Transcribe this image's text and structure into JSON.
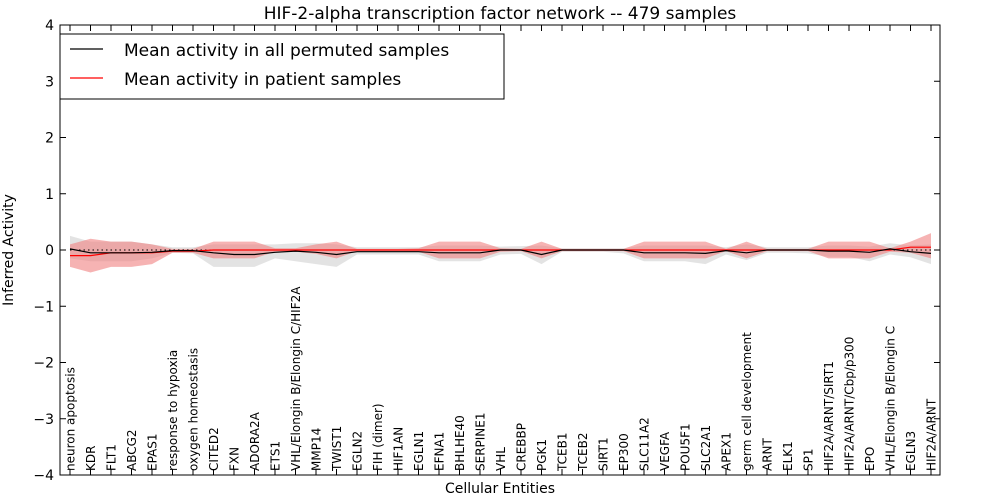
{
  "chart_data": {
    "type": "line",
    "title": "HIF-2-alpha transcription factor network -- 479 samples",
    "xlabel": "Cellular Entities",
    "ylabel": "Inferred Activity",
    "ylim": [
      -4,
      4
    ],
    "yticks": [
      4,
      3,
      2,
      1,
      0,
      -1,
      -2,
      -3,
      -4
    ],
    "ytick_labels": [
      "4",
      "3",
      "2",
      "1",
      "0",
      "−1",
      "−2",
      "−3",
      "−4"
    ],
    "grid": false,
    "legend_position": "top-left",
    "categories": [
      "neuron apoptosis",
      "KDR",
      "FLT1",
      "ABCG2",
      "EPAS1",
      "response to hypoxia",
      "oxygen homeostasis",
      "CITED2",
      "FXN",
      "ADORA2A",
      "ETS1",
      "VHL/Elongin B/Elongin C/HIF2A",
      "MMP14",
      "TWIST1",
      "EGLN2",
      "FIH (dimer)",
      "HIF1AN",
      "EGLN1",
      "EFNA1",
      "BHLHE40",
      "SERPINE1",
      "VHL",
      "CREBBP",
      "PGK1",
      "TCEB1",
      "TCEB2",
      "SIRT1",
      "EP300",
      "SLC11A2",
      "VEGFA",
      "POU5F1",
      "SLC2A1",
      "APEX1",
      "germ cell development",
      "ARNT",
      "ELK1",
      "SP1",
      "HIF2A/ARNT/SIRT1",
      "HIF2A/ARNT/Cbp/p300",
      "EPO",
      "VHL/Elongin B/Elongin C",
      "EGLN3",
      "HIF2A/ARNT"
    ],
    "series": [
      {
        "name": "Mean activity in all permuted samples",
        "color": "#000000",
        "style": "solid-line",
        "values": [
          0.02,
          -0.05,
          -0.05,
          -0.05,
          -0.04,
          -0.01,
          -0.01,
          -0.05,
          -0.08,
          -0.08,
          -0.04,
          -0.02,
          -0.04,
          -0.08,
          -0.03,
          -0.03,
          -0.03,
          -0.03,
          -0.05,
          -0.05,
          -0.05,
          0.0,
          0.0,
          -0.08,
          0.0,
          0.0,
          0.0,
          0.0,
          -0.05,
          -0.05,
          -0.05,
          -0.06,
          -0.01,
          -0.05,
          0.0,
          0.0,
          0.0,
          -0.02,
          -0.02,
          -0.04,
          0.02,
          -0.03,
          -0.06
        ],
        "band_lower": [
          -0.15,
          -0.2,
          -0.2,
          -0.2,
          -0.15,
          -0.05,
          -0.06,
          -0.3,
          -0.3,
          -0.3,
          -0.15,
          -0.2,
          -0.25,
          -0.3,
          -0.08,
          -0.08,
          -0.08,
          -0.08,
          -0.2,
          -0.2,
          -0.2,
          -0.08,
          -0.07,
          -0.25,
          -0.03,
          -0.03,
          -0.03,
          -0.06,
          -0.2,
          -0.2,
          -0.2,
          -0.25,
          -0.08,
          -0.18,
          -0.05,
          -0.05,
          -0.06,
          -0.12,
          -0.12,
          -0.2,
          -0.08,
          -0.13,
          -0.25
        ],
        "band_upper": [
          0.25,
          0.15,
          0.15,
          0.15,
          0.1,
          0.05,
          0.05,
          0.1,
          0.1,
          0.1,
          0.1,
          0.12,
          0.12,
          0.1,
          0.05,
          0.05,
          0.05,
          0.05,
          0.08,
          0.08,
          0.08,
          0.06,
          0.07,
          0.08,
          0.03,
          0.03,
          0.03,
          0.03,
          0.08,
          0.08,
          0.08,
          0.08,
          0.05,
          0.1,
          0.05,
          0.05,
          0.05,
          0.08,
          0.08,
          0.06,
          0.12,
          0.08,
          0.1
        ]
      },
      {
        "name": "Mean activity in patient samples",
        "color": "#ff0000",
        "style": "solid-line",
        "values": [
          -0.1,
          -0.1,
          -0.05,
          -0.05,
          -0.05,
          -0.02,
          -0.02,
          0.0,
          0.0,
          0.0,
          0.0,
          0.0,
          0.0,
          0.0,
          0.0,
          0.0,
          0.0,
          0.0,
          0.0,
          0.0,
          0.0,
          0.0,
          0.0,
          0.0,
          0.0,
          0.0,
          0.0,
          0.0,
          0.0,
          0.0,
          0.0,
          0.0,
          0.0,
          0.0,
          0.0,
          0.0,
          0.0,
          0.0,
          0.0,
          0.0,
          0.0,
          0.05,
          0.05
        ],
        "band_lower": [
          -0.3,
          -0.4,
          -0.3,
          -0.3,
          -0.25,
          -0.05,
          -0.05,
          -0.15,
          -0.15,
          -0.15,
          -0.03,
          -0.03,
          -0.07,
          -0.15,
          -0.02,
          -0.02,
          -0.02,
          -0.03,
          -0.15,
          -0.15,
          -0.15,
          -0.03,
          -0.02,
          -0.15,
          -0.02,
          -0.02,
          -0.02,
          -0.02,
          -0.15,
          -0.15,
          -0.15,
          -0.15,
          -0.02,
          -0.15,
          -0.02,
          -0.02,
          -0.02,
          -0.15,
          -0.15,
          -0.15,
          -0.03,
          -0.05,
          -0.15
        ],
        "band_upper": [
          0.1,
          0.2,
          0.15,
          0.15,
          0.1,
          0.02,
          0.02,
          0.15,
          0.15,
          0.15,
          0.03,
          0.03,
          0.1,
          0.15,
          0.02,
          0.02,
          0.02,
          0.03,
          0.15,
          0.15,
          0.15,
          0.03,
          0.02,
          0.15,
          0.02,
          0.02,
          0.02,
          0.02,
          0.15,
          0.15,
          0.15,
          0.15,
          0.02,
          0.15,
          0.02,
          0.02,
          0.02,
          0.15,
          0.15,
          0.15,
          0.03,
          0.15,
          0.3
        ]
      }
    ],
    "reference_line": {
      "value": 0,
      "style": "dotted",
      "color": "#000000"
    },
    "colors": {
      "band_permuted": "#cccccc",
      "band_patient": "#f08080"
    }
  }
}
